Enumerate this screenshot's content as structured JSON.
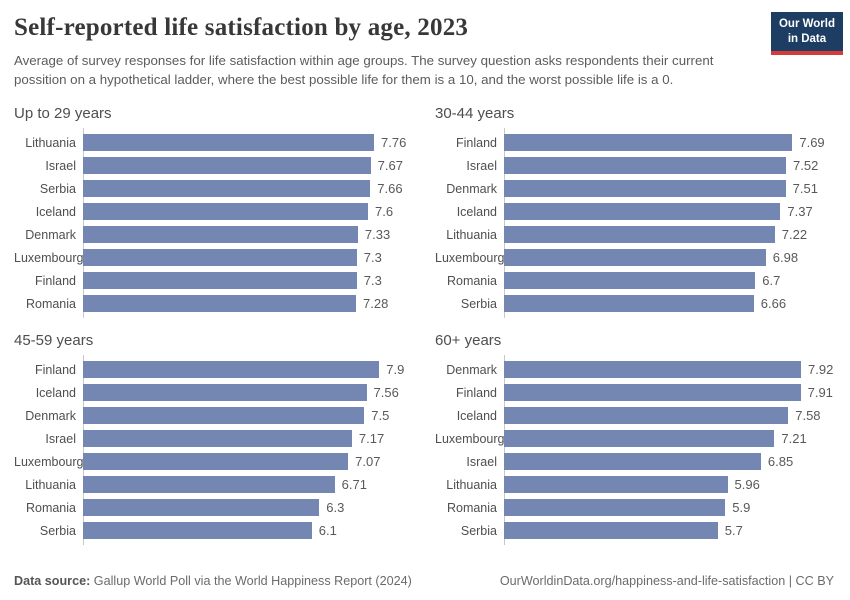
{
  "header": {
    "title": "Self-reported life satisfaction by age, 2023",
    "subtitle": "Average of survey responses for life satisfaction within age groups. The survey question asks respondents their current possition on a hypothetical ladder, where the best possible life for them is a 10, and the worst possible life is a 0.",
    "logo": {
      "line1": "Our World",
      "line2": "in Data"
    }
  },
  "chart_data": [
    {
      "type": "bar",
      "orientation": "horizontal",
      "title": "Up to 29 years",
      "categories": [
        "Lithuania",
        "Israel",
        "Serbia",
        "Iceland",
        "Denmark",
        "Luxembourg",
        "Finland",
        "Romania"
      ],
      "values": [
        7.76,
        7.67,
        7.66,
        7.6,
        7.33,
        7.3,
        7.3,
        7.28
      ],
      "xlabel": "",
      "ylabel": "",
      "xlim": [
        0,
        8.8
      ],
      "grid": false,
      "value_labels": "right of bar"
    },
    {
      "type": "bar",
      "orientation": "horizontal",
      "title": "30-44 years",
      "categories": [
        "Finland",
        "Israel",
        "Denmark",
        "Iceland",
        "Lithuania",
        "Luxembourg",
        "Romania",
        "Serbia"
      ],
      "values": [
        7.69,
        7.52,
        7.51,
        7.37,
        7.22,
        6.98,
        6.7,
        6.66
      ],
      "xlabel": "",
      "ylabel": "",
      "xlim": [
        0,
        8.8
      ],
      "grid": false,
      "value_labels": "right of bar"
    },
    {
      "type": "bar",
      "orientation": "horizontal",
      "title": "45-59 years",
      "categories": [
        "Finland",
        "Iceland",
        "Denmark",
        "Israel",
        "Luxembourg",
        "Lithuania",
        "Romania",
        "Serbia"
      ],
      "values": [
        7.9,
        7.56,
        7.5,
        7.17,
        7.07,
        6.71,
        6.3,
        6.1
      ],
      "xlabel": "",
      "ylabel": "",
      "xlim": [
        0,
        8.8
      ],
      "grid": false,
      "value_labels": "right of bar"
    },
    {
      "type": "bar",
      "orientation": "horizontal",
      "title": "60+ years",
      "categories": [
        "Denmark",
        "Finland",
        "Iceland",
        "Luxembourg",
        "Israel",
        "Lithuania",
        "Romania",
        "Serbia"
      ],
      "values": [
        7.92,
        7.91,
        7.58,
        7.21,
        6.85,
        5.96,
        5.9,
        5.7
      ],
      "xlabel": "",
      "ylabel": "",
      "xlim": [
        0,
        8.8
      ],
      "grid": false,
      "value_labels": "right of bar"
    }
  ],
  "footer": {
    "source_label": "Data source:",
    "source_text": "Gallup World Poll via the World Happiness Report (2024)",
    "right_text": "OurWorldinData.org/happiness-and-life-satisfaction | CC BY"
  },
  "colors": {
    "bar": "#7387b2",
    "logo_bg": "#1d3d63",
    "logo_stripe": "#d73a3a",
    "axis_line": "#c8c8c8"
  }
}
